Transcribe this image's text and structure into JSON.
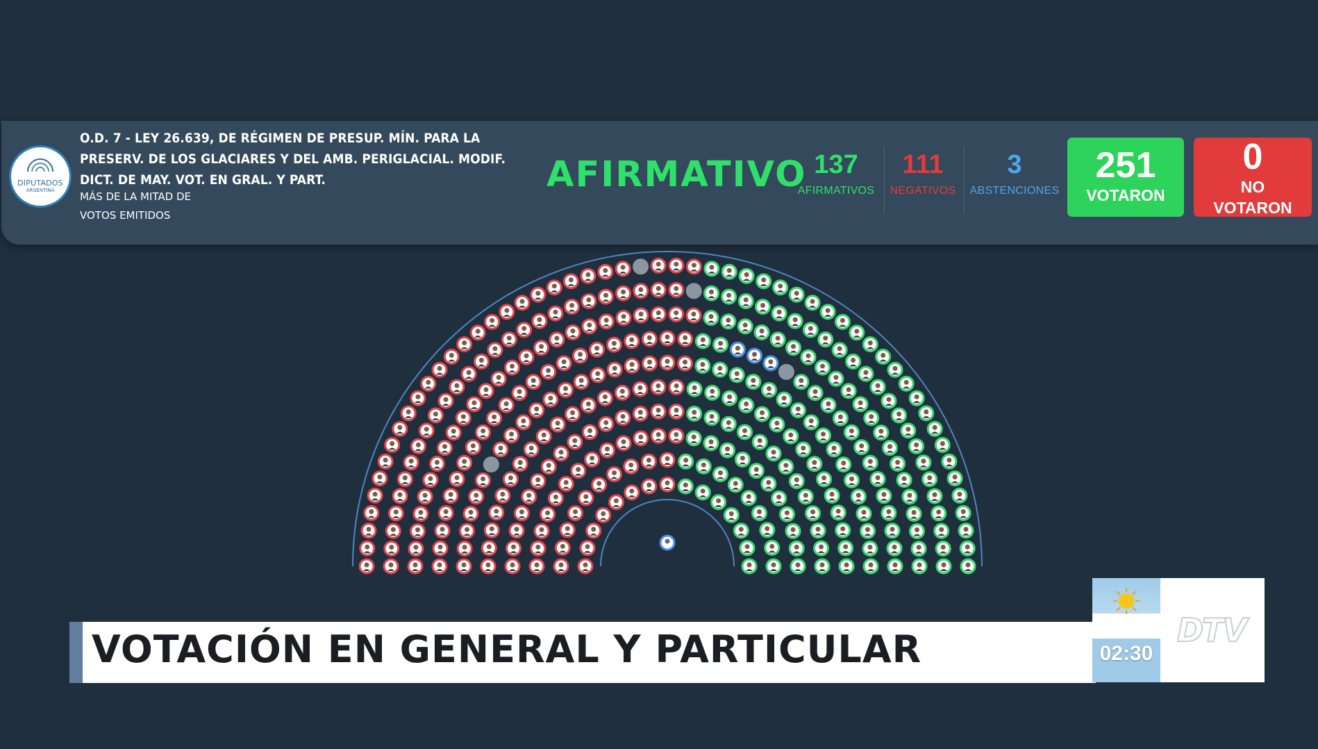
{
  "header": {
    "logo": {
      "line1": "DIPUTADOS",
      "line2": "ARGENTINA"
    },
    "title_lines": [
      "O.D. 7 - LEY 26.639, DE RÉGIMEN DE PRESUP. MÍN. PARA LA",
      "PRESERV. DE LOS GLACIARES Y DEL AMB. PERIGLACIAL. MODIF.",
      "DICT. DE MAY. VOT. EN GRAL. Y PART."
    ],
    "majority_lines": [
      "MÁS DE LA MITAD DE",
      "VOTOS EMITIDOS"
    ],
    "result": "AFIRMATIVO",
    "afirmativos": {
      "count": "137",
      "label": "AFIRMATIVOS"
    },
    "negativos": {
      "count": "111",
      "label": "NEGATIVOS"
    },
    "abstenciones": {
      "count": "3",
      "label": "ABSTENCIONES"
    },
    "votaron": {
      "count": "251",
      "label": "VOTARON"
    },
    "no_votaron": {
      "count": "0",
      "label_lines": [
        "NO",
        "VOTARON"
      ]
    }
  },
  "chamber": {
    "rows": 10,
    "seat_colors": {
      "afirmativo": "#3ad56e",
      "negativo": "#e1464c",
      "abstencion": "#4b8ee6",
      "ausente": "#8c96a0",
      "presidente": "#4b8ee6"
    },
    "split_fraction": 0.54,
    "abstention_seats": [
      [
        6,
        24
      ],
      [
        6,
        25
      ],
      [
        6,
        26
      ]
    ],
    "empty_seats": [
      [
        9,
        25
      ],
      [
        8,
        26
      ],
      [
        6,
        27
      ],
      [
        4,
        56
      ],
      [
        5,
        6
      ]
    ]
  },
  "lower_third": {
    "text": "VOTACIÓN EN GENERAL Y PARTICULAR"
  },
  "clock": {
    "time": "02:30"
  },
  "channel": {
    "logo": "DTV"
  }
}
